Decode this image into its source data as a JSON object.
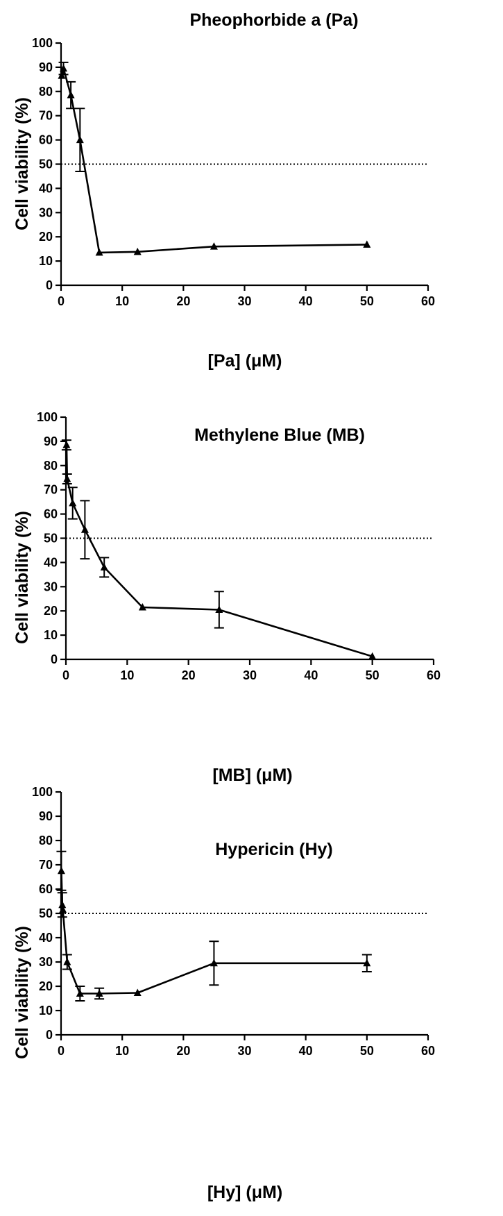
{
  "colors": {
    "ink": "#000000",
    "background": "#ffffff"
  },
  "chart_data": [
    {
      "type": "line",
      "title": "Pheophorbide a (Pa)",
      "xlabel": "[Pa] (μM)",
      "ylabel": "Cell viability (%)",
      "xlim": [
        0,
        60
      ],
      "ylim": [
        0,
        100
      ],
      "xticks": [
        0,
        10,
        20,
        30,
        40,
        50,
        60
      ],
      "yticks": [
        0,
        10,
        20,
        30,
        40,
        50,
        60,
        70,
        80,
        90,
        100
      ],
      "reference_line_y": 50,
      "grid": false,
      "marker": "triangle",
      "x": [
        0.1,
        0.4,
        1.6,
        3.1,
        6.25,
        12.5,
        25,
        50
      ],
      "y": [
        86.5,
        89.5,
        78.5,
        60,
        13.5,
        13.8,
        16,
        16.8
      ],
      "error": [
        null,
        2.5,
        5.5,
        13,
        null,
        null,
        null,
        null
      ]
    },
    {
      "type": "line",
      "title": "Methylene Blue (MB)",
      "xlabel": "[MB] (μM)",
      "ylabel": "Cell viability (%)",
      "xlim": [
        0,
        60
      ],
      "ylim": [
        0,
        100
      ],
      "xticks": [
        0,
        10,
        20,
        30,
        40,
        50,
        60
      ],
      "yticks": [
        0,
        10,
        20,
        30,
        40,
        50,
        60,
        70,
        80,
        90,
        100
      ],
      "reference_line_y": 50,
      "grid": false,
      "marker": "triangle",
      "x": [
        0.1,
        0.2,
        1.1,
        3.1,
        6.25,
        12.5,
        25,
        50
      ],
      "y": [
        88.5,
        74.5,
        64.5,
        53.5,
        38,
        21.5,
        20.5,
        1.2
      ],
      "error": [
        2,
        2,
        6.5,
        12,
        4,
        null,
        7.5,
        null
      ]
    },
    {
      "type": "line",
      "title": "Hypericin (Hy)",
      "xlabel": "[Hy] (μM)",
      "ylabel": "Cell viability (%)",
      "xlim": [
        0,
        60
      ],
      "ylim": [
        0,
        100
      ],
      "xticks": [
        0,
        10,
        20,
        30,
        40,
        50,
        60
      ],
      "yticks": [
        0,
        10,
        20,
        30,
        40,
        50,
        60,
        70,
        80,
        90,
        100
      ],
      "reference_line_y": 50,
      "grid": false,
      "marker": "triangle",
      "x": [
        0.05,
        0.2,
        0.3,
        1,
        3.1,
        6.25,
        12.5,
        25,
        50
      ],
      "y": [
        67.5,
        53.5,
        51.5,
        30,
        17,
        17,
        17.3,
        29.5,
        29.5
      ],
      "error": [
        8,
        5,
        null,
        3,
        3,
        2.2,
        null,
        9,
        3.5
      ]
    }
  ]
}
